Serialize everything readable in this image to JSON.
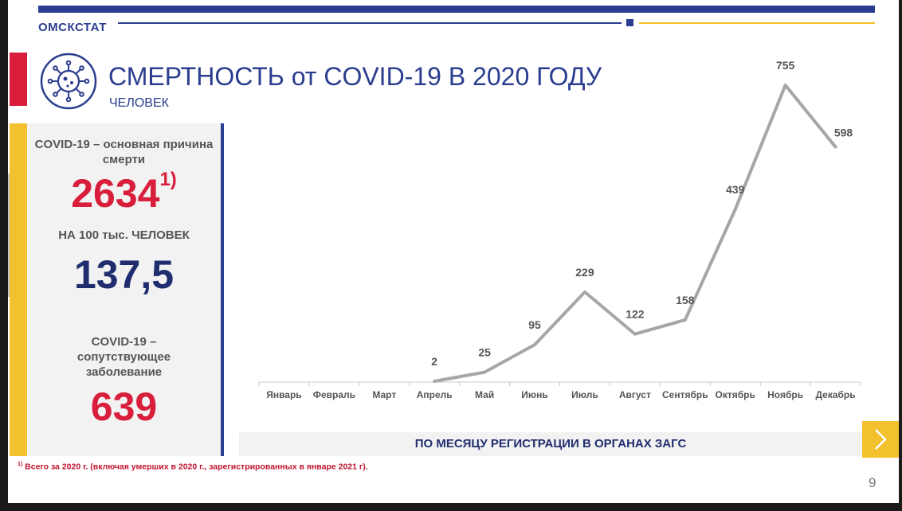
{
  "header": {
    "org": "ОМСКСТАТ",
    "title": "СМЕРТНОСТЬ от COVID-19 В 2020 ГОДУ",
    "subtitle": "ЧЕЛОВЕК"
  },
  "panel": {
    "main_cause_label": "COVID-19 – основная причина смерти",
    "main_cause_value": "2634",
    "main_cause_mark": "1)",
    "per100k_label": "НА 100 тыс. ЧЕЛОВЕК",
    "per100k_value": "137,5",
    "comorbid_label": "COVID-19 – сопутствующее заболевание",
    "comorbid_value": "639"
  },
  "footnote": {
    "mark": "1)",
    "text": " Всего за 2020 г. (включая умерших в 2020 г., зарегистрированных в январе 2021 г)."
  },
  "caption": "ПО МЕСЯЦУ РЕГИСТРАЦИИ В ОРГАНАХ ЗАГС",
  "page_number": "9",
  "colors": {
    "navy": "#2b3d8f",
    "red": "#d81e3b",
    "yellow": "#f3c12d",
    "line": "#a6a6a6"
  },
  "icons": {
    "virus": "virus-icon",
    "next": "chevron-right-icon"
  },
  "chart_data": {
    "type": "line",
    "title": "",
    "xlabel": "",
    "ylabel": "",
    "categories": [
      "Январь",
      "Февраль",
      "Март",
      "Апрель",
      "Май",
      "Июнь",
      "Июль",
      "Август",
      "Сентябрь",
      "Октябрь",
      "Ноябрь",
      "Декабрь"
    ],
    "series": [
      {
        "values": [
          null,
          null,
          null,
          2,
          25,
          95,
          229,
          122,
          158,
          439,
          755,
          598
        ]
      }
    ],
    "ylim": [
      0,
      755
    ],
    "grid": false,
    "legend": "none"
  }
}
